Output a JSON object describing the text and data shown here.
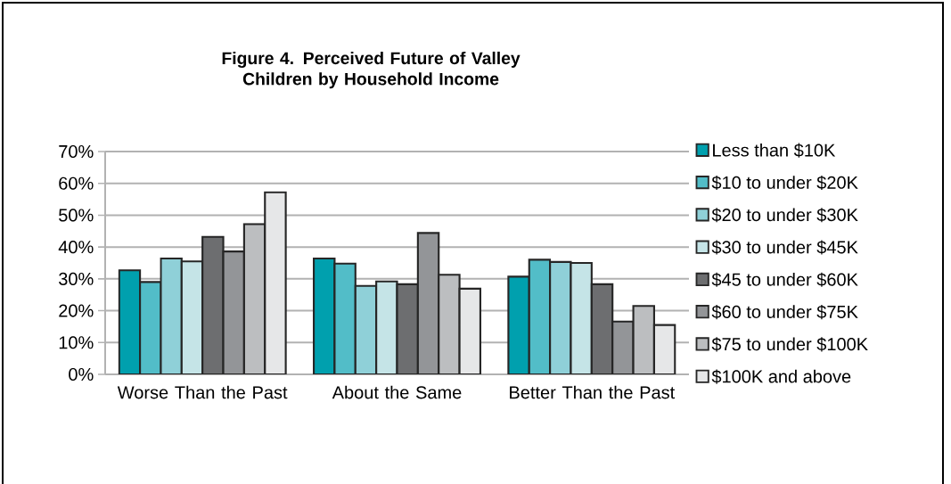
{
  "chart_data": {
    "type": "bar",
    "title": "Figure 4. Perceived Future of Valley Children by Household Income",
    "categories": [
      "Worse Than the Past",
      "About the Same",
      "Better Than the Past"
    ],
    "series": [
      {
        "name": "Less than $10K",
        "color": "#00a0ae",
        "values": [
          32.7,
          36.4,
          30.7
        ]
      },
      {
        "name": "$10 to under $20K",
        "color": "#52bdc8",
        "values": [
          29.0,
          34.8,
          36.0
        ]
      },
      {
        "name": "$20 to under $30K",
        "color": "#8fd0d8",
        "values": [
          36.4,
          27.8,
          35.3
        ]
      },
      {
        "name": "$30 to under $45K",
        "color": "#c5e4e7",
        "values": [
          35.5,
          29.2,
          35.0
        ]
      },
      {
        "name": "$45 to under $60K",
        "color": "#6d6e70",
        "values": [
          43.2,
          28.3,
          28.3
        ]
      },
      {
        "name": "$60 to under $75K",
        "color": "#939598",
        "values": [
          38.6,
          44.4,
          16.6
        ]
      },
      {
        "name": "$75 to under $100K",
        "color": "#bcbec0",
        "values": [
          47.2,
          31.3,
          21.5
        ]
      },
      {
        "name": "$100K and above",
        "color": "#e6e7e8",
        "values": [
          57.2,
          26.9,
          15.5
        ]
      }
    ],
    "ylim": [
      0,
      70
    ],
    "yticks": [
      {
        "value": 0,
        "label": "0%"
      },
      {
        "value": 10,
        "label": "10%"
      },
      {
        "value": 20,
        "label": "20%"
      },
      {
        "value": 30,
        "label": "30%"
      },
      {
        "value": 40,
        "label": "40%"
      },
      {
        "value": 50,
        "label": "50%"
      },
      {
        "value": 60,
        "label": "60%"
      },
      {
        "value": 70,
        "label": "70%"
      }
    ],
    "grid": "y",
    "legend": "right"
  }
}
